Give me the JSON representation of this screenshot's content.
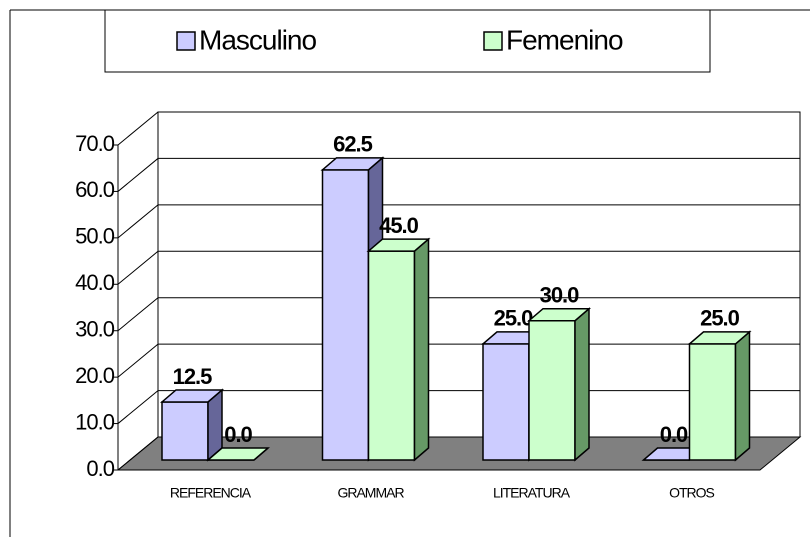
{
  "chart_data": {
    "type": "bar3d",
    "categories": [
      "REFERENCIA",
      "GRAMMAR",
      "LITERATURA",
      "OTROS"
    ],
    "series": [
      {
        "name": "Masculino",
        "color": "#ccccff",
        "side_color": "#666699",
        "values": [
          12.5,
          62.5,
          25,
          0
        ],
        "value_labels": [
          "12.5",
          "62.5",
          "25.0",
          "0.0"
        ]
      },
      {
        "name": "Femenino",
        "color": "#ccffcc",
        "side_color": "#669966",
        "values": [
          0,
          45,
          30,
          25
        ],
        "value_labels": [
          "0.0",
          "45.0",
          "30.0",
          "25.0"
        ]
      }
    ],
    "ylim": [
      0,
      70
    ],
    "yticks": [
      {
        "value": 0,
        "label": "0.0"
      },
      {
        "value": 10,
        "label": "10.0"
      },
      {
        "value": 20,
        "label": "20.0"
      },
      {
        "value": 30,
        "label": "30.0"
      },
      {
        "value": 40,
        "label": "40.0"
      },
      {
        "value": 50,
        "label": "50.0"
      },
      {
        "value": 60,
        "label": "60.0"
      },
      {
        "value": 70,
        "label": "70.0"
      }
    ],
    "grid": true,
    "legend": "top"
  }
}
